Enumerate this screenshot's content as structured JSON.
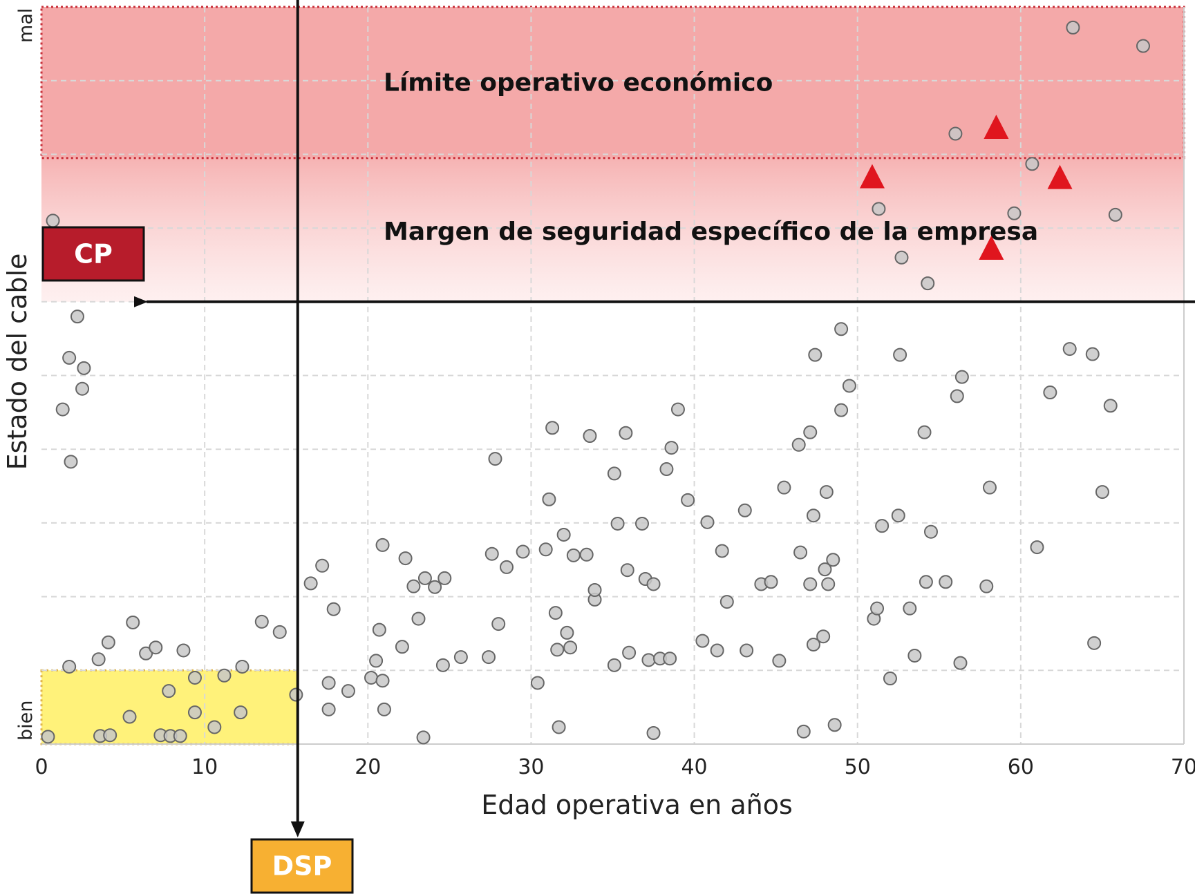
{
  "chart_data": {
    "type": "scatter",
    "xlabel": "Edad operativa en años",
    "ylabel": "Estado del cable",
    "xlim": [
      0,
      70
    ],
    "ylim": [
      0,
      100
    ],
    "x_ticks": [
      "0",
      "10",
      "20",
      "30",
      "40",
      "50",
      "60",
      "70"
    ],
    "y_end_labels": {
      "low": "bien",
      "high": "mal"
    },
    "grid": true,
    "zones": [
      {
        "label": "Límite operativo económico",
        "y_range": [
          79.5,
          100
        ],
        "color": "#f4a9a9"
      },
      {
        "label": "Margen de seguridad específico de la empresa",
        "y_range": [
          60,
          79.5
        ],
        "color": "#f8c5c5"
      },
      {
        "label": "",
        "x_range": [
          0,
          15.7
        ],
        "y_range": [
          0,
          10
        ],
        "color": "#fff27a"
      }
    ],
    "markers": [
      {
        "label": "CP",
        "axis": "y",
        "value": 60,
        "color": "#b71c2b",
        "text_color": "#ffffff"
      },
      {
        "label": "DSP",
        "axis": "x",
        "value": 15.7,
        "color": "#f7b032",
        "text_color": "#ffffff"
      }
    ],
    "series": [
      {
        "marker": "circle",
        "color": "#c8c8c8",
        "points": [
          [
            0.4,
            1
          ],
          [
            0.7,
            71
          ],
          [
            1.3,
            45.4
          ],
          [
            2.2,
            58
          ],
          [
            2.6,
            51
          ],
          [
            1.7,
            52.4
          ],
          [
            2.5,
            48.2
          ],
          [
            1.8,
            38.3
          ],
          [
            1.7,
            10.5
          ],
          [
            3.5,
            11.5
          ],
          [
            4.1,
            13.8
          ],
          [
            3.6,
            1.1
          ],
          [
            4.2,
            1.2
          ],
          [
            5.6,
            16.5
          ],
          [
            6.4,
            12.3
          ],
          [
            7,
            13.1
          ],
          [
            8.7,
            12.7
          ],
          [
            7.3,
            1.2
          ],
          [
            7.9,
            1.1
          ],
          [
            8.5,
            1.1
          ],
          [
            9.4,
            9
          ],
          [
            9.4,
            4.3
          ],
          [
            10.6,
            2.3
          ],
          [
            11.2,
            9.3
          ],
          [
            12.3,
            10.5
          ],
          [
            12.2,
            4.3
          ],
          [
            13.5,
            16.6
          ],
          [
            14.6,
            15.2
          ],
          [
            15.6,
            6.7
          ],
          [
            5.4,
            3.7
          ],
          [
            7.8,
            7.2
          ],
          [
            16.5,
            21.8
          ],
          [
            17.2,
            24.2
          ],
          [
            17.9,
            18.3
          ],
          [
            17.6,
            8.3
          ],
          [
            17.6,
            4.7
          ],
          [
            18.8,
            7.2
          ],
          [
            20.2,
            9
          ],
          [
            20.5,
            11.3
          ],
          [
            20.7,
            15.5
          ],
          [
            20.9,
            8.6
          ],
          [
            21,
            4.7
          ],
          [
            20.9,
            27
          ],
          [
            22.1,
            13.2
          ],
          [
            22.3,
            25.2
          ],
          [
            22.8,
            21.4
          ],
          [
            23.1,
            17
          ],
          [
            23.4,
            0.9
          ],
          [
            23.5,
            22.5
          ],
          [
            24.1,
            21.3
          ],
          [
            24.6,
            10.7
          ],
          [
            24.7,
            22.5
          ],
          [
            25.7,
            11.8
          ],
          [
            27.4,
            11.8
          ],
          [
            27.6,
            25.8
          ],
          [
            27.8,
            38.7
          ],
          [
            28,
            16.3
          ],
          [
            28.5,
            24
          ],
          [
            29.5,
            26.1
          ],
          [
            30.4,
            8.3
          ],
          [
            30.9,
            26.4
          ],
          [
            31.1,
            33.2
          ],
          [
            31.3,
            42.9
          ],
          [
            31.5,
            17.8
          ],
          [
            31.6,
            12.8
          ],
          [
            31.7,
            2.3
          ],
          [
            32,
            28.4
          ],
          [
            32.2,
            15.1
          ],
          [
            32.4,
            13.1
          ],
          [
            32.6,
            25.6
          ],
          [
            33.4,
            25.7
          ],
          [
            33.6,
            41.8
          ],
          [
            33.9,
            19.6
          ],
          [
            33.9,
            20.9
          ],
          [
            35.1,
            10.7
          ],
          [
            35.1,
            36.7
          ],
          [
            35.3,
            29.9
          ],
          [
            35.8,
            42.2
          ],
          [
            35.9,
            23.6
          ],
          [
            36,
            12.4
          ],
          [
            36.8,
            29.9
          ],
          [
            37,
            22.4
          ],
          [
            37.2,
            11.4
          ],
          [
            37.5,
            21.7
          ],
          [
            37.5,
            1.5
          ],
          [
            37.9,
            11.6
          ],
          [
            38.3,
            37.3
          ],
          [
            38.5,
            11.6
          ],
          [
            38.6,
            40.2
          ],
          [
            39,
            45.4
          ],
          [
            39.6,
            33.1
          ],
          [
            40.5,
            14
          ],
          [
            40.8,
            30.1
          ],
          [
            41.4,
            12.7
          ],
          [
            41.7,
            26.2
          ],
          [
            42,
            19.3
          ],
          [
            43.2,
            12.7
          ],
          [
            43.1,
            31.7
          ],
          [
            44.1,
            21.7
          ],
          [
            44.7,
            22
          ],
          [
            45.2,
            11.3
          ],
          [
            45.5,
            34.8
          ],
          [
            46.4,
            40.6
          ],
          [
            46.5,
            26
          ],
          [
            46.7,
            1.7
          ],
          [
            47.1,
            42.3
          ],
          [
            47.1,
            21.7
          ],
          [
            47.3,
            13.5
          ],
          [
            47.3,
            31
          ],
          [
            47.4,
            52.8
          ],
          [
            47.9,
            14.6
          ],
          [
            48,
            23.7
          ],
          [
            48.1,
            34.2
          ],
          [
            48.2,
            21.7
          ],
          [
            48.5,
            25
          ],
          [
            48.6,
            2.6
          ],
          [
            49,
            45.3
          ],
          [
            49,
            56.3
          ],
          [
            49.5,
            48.6
          ],
          [
            51,
            17
          ],
          [
            51.2,
            18.4
          ],
          [
            51.5,
            29.6
          ],
          [
            52,
            8.9
          ],
          [
            52.5,
            31
          ],
          [
            52.6,
            52.8
          ],
          [
            53.2,
            18.4
          ],
          [
            53.5,
            12
          ],
          [
            54.1,
            42.3
          ],
          [
            54.2,
            22
          ],
          [
            54.5,
            28.8
          ],
          [
            55.4,
            22
          ],
          [
            56.1,
            47.2
          ],
          [
            56.3,
            11
          ],
          [
            56.4,
            49.8
          ],
          [
            57.9,
            21.4
          ],
          [
            58.1,
            34.8
          ],
          [
            61,
            26.7
          ],
          [
            61.8,
            47.7
          ],
          [
            63,
            53.6
          ],
          [
            64.4,
            52.9
          ],
          [
            64.5,
            13.7
          ],
          [
            65,
            34.2
          ],
          [
            65.5,
            45.9
          ],
          [
            52.7,
            66
          ],
          [
            54.3,
            62.5
          ],
          [
            51.3,
            72.6
          ],
          [
            56,
            82.8
          ],
          [
            59.6,
            72
          ],
          [
            60.7,
            78.7
          ],
          [
            65.8,
            71.8
          ],
          [
            63.2,
            97.2
          ],
          [
            67.5,
            94.7
          ]
        ]
      },
      {
        "marker": "triangle",
        "color": "#e0151e",
        "points": [
          [
            50.9,
            76.8
          ],
          [
            58.5,
            83.5
          ],
          [
            62.4,
            76.7
          ],
          [
            58.2,
            67.1
          ]
        ]
      }
    ]
  }
}
